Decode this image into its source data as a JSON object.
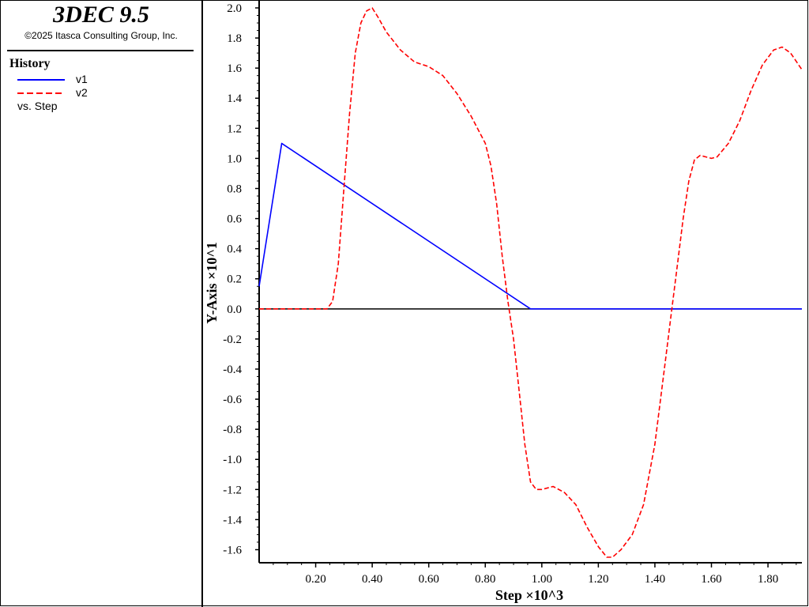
{
  "app": {
    "title": "3DEC 9.5",
    "copyright": "©2025 Itasca Consulting Group, Inc."
  },
  "legend": {
    "heading": "History",
    "versus_label": "vs. Step",
    "items": [
      {
        "label": "v1",
        "color": "#0000ff",
        "style": "solid"
      },
      {
        "label": "v2",
        "color": "#ff0000",
        "style": "dashed"
      }
    ]
  },
  "chart_data": {
    "type": "line",
    "xlabel": "Step ×10^3",
    "ylabel": "Y-Axis ×10^1",
    "xlim": [
      0.0,
      1.92
    ],
    "ylim": [
      -1.65,
      2.0
    ],
    "x_ticks": [
      0.2,
      0.4,
      0.6,
      0.8,
      1.0,
      1.2,
      1.4,
      1.6,
      1.8
    ],
    "x_tick_labels": [
      "0.20",
      "0.40",
      "0.60",
      "0.80",
      "1.00",
      "1.20",
      "1.40",
      "1.60",
      "1.80"
    ],
    "y_ticks": [
      2.0,
      1.8,
      1.6,
      1.4,
      1.2,
      1.0,
      0.8,
      0.6,
      0.4,
      0.2,
      0.0,
      -0.2,
      -0.4,
      -0.6,
      -0.8,
      -1.0,
      -1.2,
      -1.4,
      -1.6
    ],
    "y_tick_labels": [
      "2.0",
      "1.8",
      "1.6",
      "1.4",
      "1.2",
      "1.0",
      "0.8",
      "0.6",
      "0.4",
      "0.2",
      "0.0",
      "-0.2",
      "-0.4",
      "-0.6",
      "-0.8",
      "-1.0",
      "-1.2",
      "-1.4",
      "-1.6"
    ],
    "zero_line": true,
    "grid": false,
    "legend_position": "left panel",
    "series": [
      {
        "name": "v1",
        "color": "#0000ff",
        "style": "solid",
        "x": [
          0.0,
          0.08,
          0.96,
          1.92
        ],
        "y": [
          0.15,
          1.1,
          0.0,
          0.0
        ]
      },
      {
        "name": "v2",
        "color": "#ff0000",
        "style": "dashed",
        "x": [
          0.0,
          0.2,
          0.22,
          0.24,
          0.26,
          0.28,
          0.3,
          0.32,
          0.34,
          0.36,
          0.38,
          0.4,
          0.42,
          0.45,
          0.5,
          0.55,
          0.6,
          0.65,
          0.7,
          0.75,
          0.8,
          0.82,
          0.84,
          0.86,
          0.88,
          0.9,
          0.92,
          0.94,
          0.96,
          0.98,
          1.0,
          1.04,
          1.08,
          1.12,
          1.16,
          1.2,
          1.23,
          1.25,
          1.28,
          1.32,
          1.36,
          1.4,
          1.42,
          1.44,
          1.46,
          1.48,
          1.5,
          1.52,
          1.54,
          1.56,
          1.58,
          1.6,
          1.62,
          1.66,
          1.7,
          1.74,
          1.78,
          1.82,
          1.85,
          1.88,
          1.92
        ],
        "y": [
          0.0,
          0.0,
          0.0,
          0.0,
          0.05,
          0.3,
          0.8,
          1.3,
          1.7,
          1.9,
          1.98,
          2.0,
          1.94,
          1.84,
          1.72,
          1.64,
          1.61,
          1.55,
          1.43,
          1.28,
          1.1,
          0.95,
          0.7,
          0.35,
          0.05,
          -0.2,
          -0.55,
          -0.9,
          -1.15,
          -1.2,
          -1.2,
          -1.18,
          -1.22,
          -1.3,
          -1.45,
          -1.58,
          -1.65,
          -1.65,
          -1.6,
          -1.5,
          -1.3,
          -0.9,
          -0.6,
          -0.3,
          0.0,
          0.3,
          0.6,
          0.85,
          0.99,
          1.02,
          1.01,
          1.0,
          1.01,
          1.1,
          1.25,
          1.45,
          1.62,
          1.72,
          1.74,
          1.7,
          1.59
        ]
      }
    ]
  }
}
